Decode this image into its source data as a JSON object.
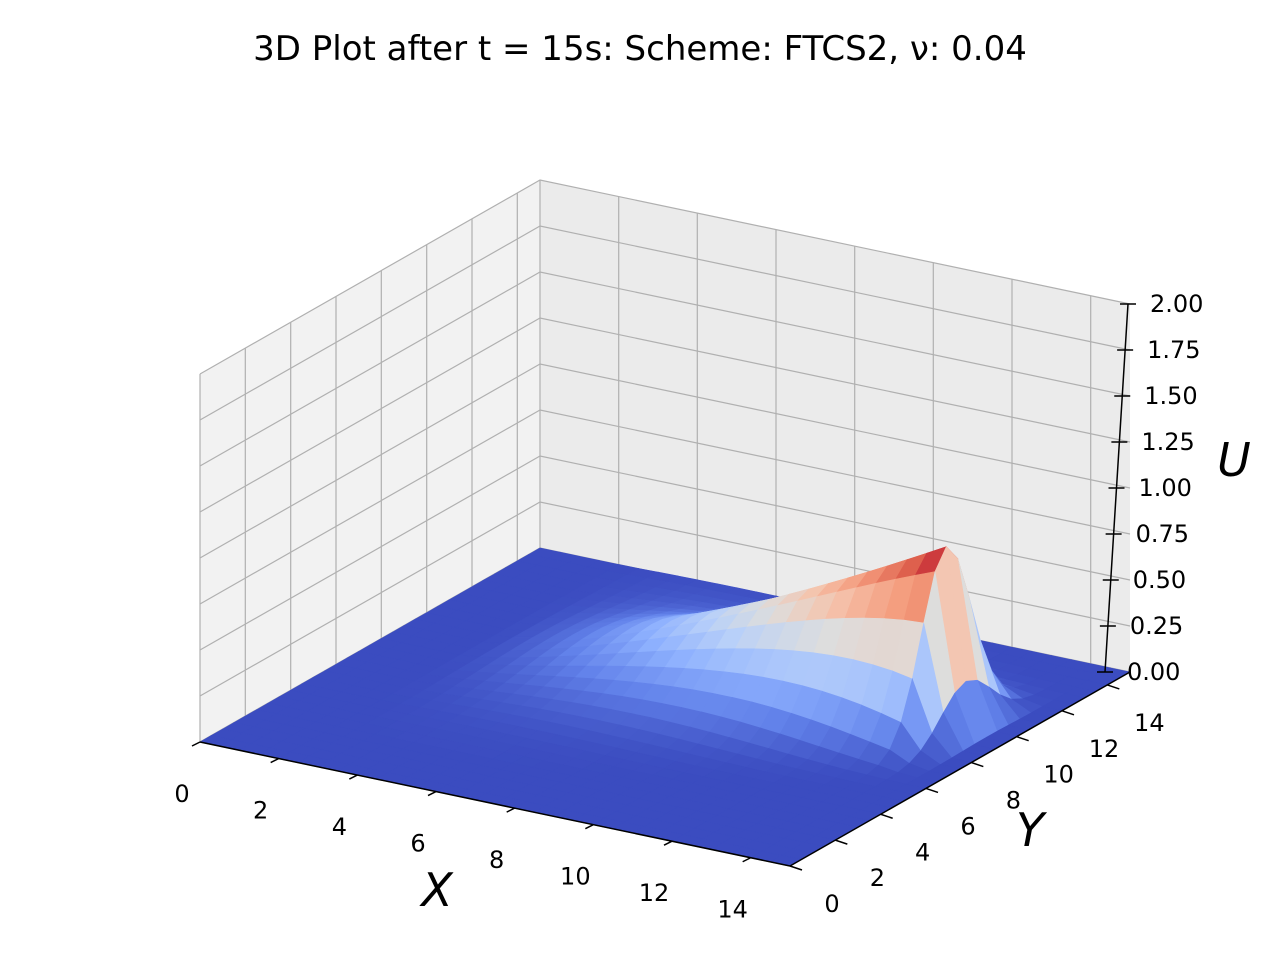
{
  "chart_data": {
    "type": "surface",
    "title": "3D Plot after t = 15s: Scheme: FTCS2, ν: 0.04",
    "xlabel": "X",
    "ylabel": "Y",
    "zlabel": "U",
    "xlim": [
      0,
      15
    ],
    "ylim": [
      0,
      15
    ],
    "zlim": [
      0,
      2
    ],
    "xticks": [
      "0",
      "2",
      "4",
      "6",
      "8",
      "10",
      "12",
      "14"
    ],
    "yticks": [
      "0",
      "2",
      "4",
      "6",
      "8",
      "10",
      "12",
      "14"
    ],
    "zticks": [
      "0.00",
      "0.25",
      "0.50",
      "0.75",
      "1.00",
      "1.25",
      "1.50",
      "1.75",
      "2.00"
    ],
    "surface": {
      "description_values": {
        "baseline": 0.0,
        "peak_value": 1.0,
        "peak_x": 13.5,
        "peak_y": 9.5,
        "ridge_start_x": 2.0,
        "ridge_start_y": 9.5,
        "y_half_width": 2.8
      },
      "colormap": "coolwarm"
    }
  }
}
